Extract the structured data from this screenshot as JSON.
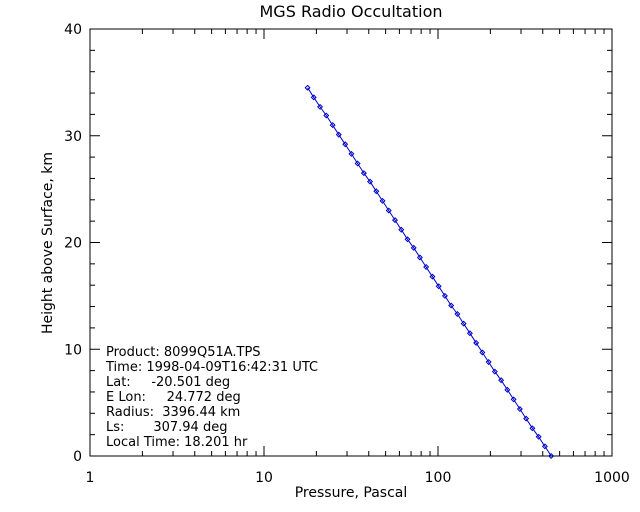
{
  "chart_data": {
    "type": "line",
    "title": "MGS Radio Occultation",
    "xlabel": "Pressure, Pascal",
    "ylabel": "Height above Surface, km",
    "x_scale": "log",
    "xlim": [
      1,
      1000
    ],
    "ylim": [
      0,
      40
    ],
    "x_ticks": [
      "1",
      "10",
      "100",
      "1000"
    ],
    "y_ticks": [
      "0",
      "10",
      "20",
      "30",
      "40"
    ],
    "grid": false,
    "legend": "none",
    "series_color": "#0000cc",
    "marker": "diamond",
    "series": [
      {
        "x": [
          447.0,
          411.5,
          378.8,
          348.7,
          321.0,
          295.5,
          272.0,
          250.4,
          230.5,
          212.2,
          195.4,
          179.9,
          165.6,
          152.5,
          140.4,
          129.3,
          119.0,
          109.6,
          100.9,
          92.9,
          85.5,
          78.7,
          72.5,
          66.8,
          61.5,
          56.6,
          52.1,
          48.0,
          44.2,
          40.7,
          37.5,
          34.5,
          31.8,
          29.3,
          26.9,
          24.8,
          22.8,
          21.0,
          19.3,
          17.8
        ],
        "y": [
          0.0,
          0.9,
          1.8,
          2.6,
          3.5,
          4.4,
          5.3,
          6.2,
          7.1,
          7.9,
          8.8,
          9.7,
          10.6,
          11.5,
          12.4,
          13.3,
          14.1,
          15.0,
          15.9,
          16.8,
          17.7,
          18.6,
          19.5,
          20.3,
          21.2,
          22.1,
          23.0,
          23.9,
          24.8,
          25.7,
          26.5,
          27.4,
          28.3,
          29.2,
          30.1,
          31.0,
          31.9,
          32.7,
          33.6,
          34.5
        ]
      }
    ],
    "annotations": {
      "product": "Product: 8099Q51A.TPS",
      "time": "Time: 1998-04-09T16:42:31 UTC",
      "lat": "Lat:     -20.501 deg",
      "elon": "E Lon:     24.772 deg",
      "radius": "Radius:  3396.44 km",
      "ls": "Ls:       307.94 deg",
      "local_time": "Local Time: 18.201 hr"
    }
  }
}
